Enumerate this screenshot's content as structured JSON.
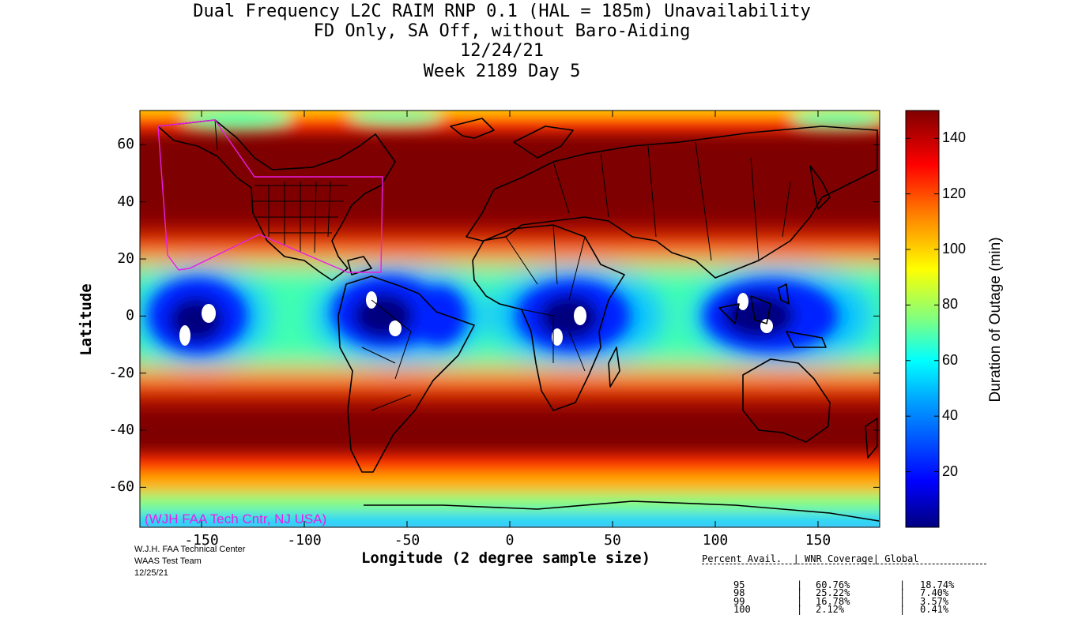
{
  "titles": [
    "Dual Frequency L2C RAIM RNP 0.1 (HAL = 185m) Unavailability",
    "FD Only, SA Off, without Baro-Aiding",
    "12/24/21",
    "Week 2189 Day 5"
  ],
  "axes": {
    "xlabel": "Longitude (2 degree sample size)",
    "ylabel": "Latitude",
    "xticks": [
      "-150",
      "-100",
      "-50",
      "0",
      "50",
      "100",
      "150"
    ],
    "yticks": [
      "60",
      "40",
      "20",
      "0",
      "-20",
      "-40",
      "-60"
    ],
    "xlim": [
      -180,
      180
    ],
    "ylim": [
      -74,
      72
    ]
  },
  "colorbar": {
    "label": "Duration of Outage (min)",
    "ticks": [
      "20",
      "40",
      "60",
      "80",
      "100",
      "120",
      "140"
    ],
    "range": [
      0,
      150
    ],
    "colors": [
      "#00007f",
      "#0000ff",
      "#00a0ff",
      "#00ffff",
      "#80ff80",
      "#ffff00",
      "#ff8000",
      "#ff0000",
      "#7f0000"
    ]
  },
  "watermark": "(WJH FAA Tech Cntr, NJ USA)",
  "credits": [
    "W.J.H. FAA Technical Center",
    "WAAS Test Team",
    "12/25/21"
  ],
  "stats": {
    "header": "Percent Avail.  | WNR Coverage| Global",
    "rows": [
      {
        "pct": "95",
        "wnr": "60.76%",
        "global": "18.74%"
      },
      {
        "pct": "98",
        "wnr": "25.22%",
        "global": "7.40%"
      },
      {
        "pct": "99",
        "wnr": "16.78%",
        "global": "3.57%"
      },
      {
        "pct": "100",
        "wnr": "2.12%",
        "global": "0.41%"
      }
    ]
  },
  "chart_data": {
    "type": "heatmap",
    "xlabel": "Longitude (2 degree sample size)",
    "ylabel": "Latitude",
    "xlim": [
      -180,
      180
    ],
    "ylim": [
      -74,
      72
    ],
    "colorbar_label": "Duration of Outage (min)",
    "colorbar_range": [
      0,
      150
    ],
    "low_outage_regions": [
      {
        "lon_range": [
          -180,
          -100
        ],
        "lat_range": [
          -20,
          16
        ]
      },
      {
        "lon_range": [
          -80,
          -15
        ],
        "lat_range": [
          -20,
          16
        ]
      },
      {
        "lon_range": [
          -5,
          75
        ],
        "lat_range": [
          -20,
          16
        ]
      },
      {
        "lon_range": [
          90,
          180
        ],
        "lat_range": [
          -20,
          16
        ]
      }
    ],
    "zero_outage_spots": [
      {
        "lon": -157,
        "lat": -7
      },
      {
        "lon": -145,
        "lat": 1
      },
      {
        "lon": -63,
        "lat": 6
      },
      {
        "lon": -54,
        "lat": -4
      },
      {
        "lon": 25,
        "lat": -7
      },
      {
        "lon": 36,
        "lat": 0
      },
      {
        "lon": 115,
        "lat": 6
      },
      {
        "lon": 128,
        "lat": -4
      }
    ]
  }
}
